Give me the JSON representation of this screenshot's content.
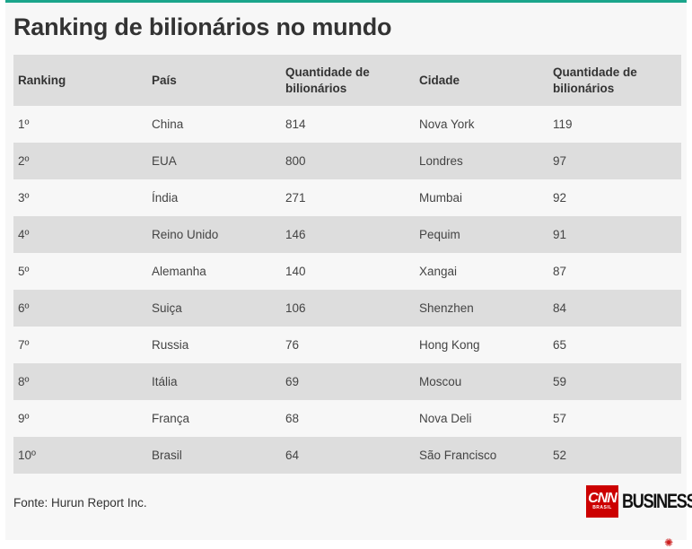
{
  "title": "Ranking de bilionários no mundo",
  "table": {
    "headers": [
      "Ranking",
      "País",
      "Quantidade de bilionários",
      "Cidade",
      "Quantidade de bilionários"
    ],
    "rows": [
      [
        "1º",
        "China",
        "814",
        "Nova York",
        "119"
      ],
      [
        "2º",
        "EUA",
        "800",
        "Londres",
        "97"
      ],
      [
        "3º",
        "Índia",
        "271",
        "Mumbai",
        "92"
      ],
      [
        "4º",
        "Reino Unido",
        "146",
        "Pequim",
        "91"
      ],
      [
        "5º",
        "Alemanha",
        "140",
        "Xangai",
        "87"
      ],
      [
        "6º",
        "Suiça",
        "106",
        "Shenzhen",
        "84"
      ],
      [
        "7º",
        "Russia",
        "76",
        "Hong Kong",
        "65"
      ],
      [
        "8º",
        "Itália",
        "69",
        "Moscou",
        "59"
      ],
      [
        "9º",
        "França",
        "68",
        "Nova Deli",
        "57"
      ],
      [
        "10º",
        "Brasil",
        "64",
        "São Francisco",
        "52"
      ]
    ]
  },
  "source": "Fonte: Hurun Report Inc.",
  "logo": {
    "cnn": "CNN",
    "cnn_sub": "BRASIL",
    "business": "BUSINESS",
    "business_dot": "."
  },
  "colors": {
    "accent": "#1aa58b",
    "cnn_red": "#cc0000",
    "row_shade": "#dddddd",
    "row_light": "#f7f7f7"
  }
}
